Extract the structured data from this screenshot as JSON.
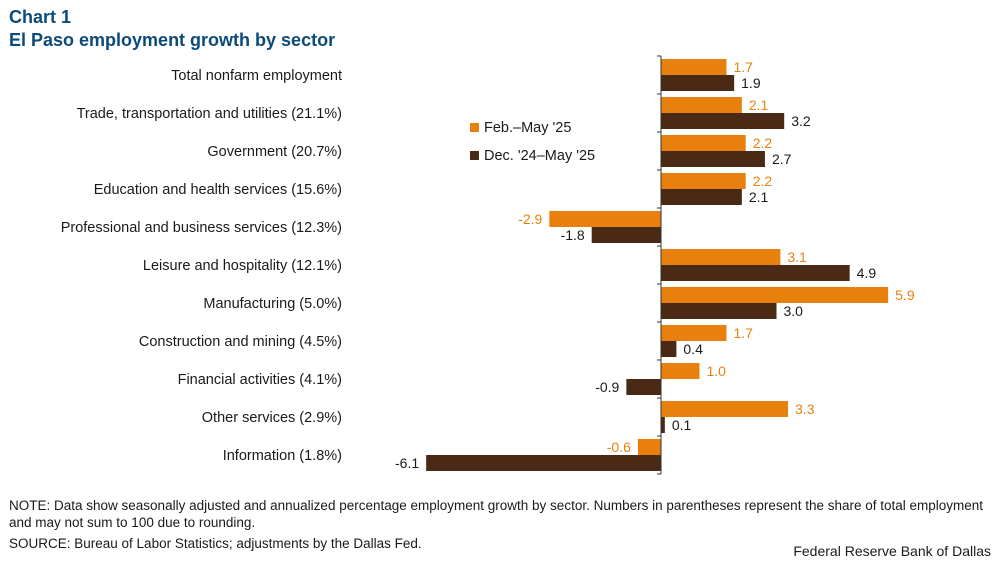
{
  "header": {
    "chart_number": "Chart 1",
    "title": "El Paso employment growth by sector"
  },
  "footer": {
    "note": "NOTE: Data show seasonally adjusted and annualized percentage employment growth by sector. Numbers in parentheses represent the share of total employment and may not sum to 100 due to rounding.",
    "source": "SOURCE: Bureau of Labor Statistics; adjustments by the Dallas Fed.",
    "credit": "Federal Reserve Bank of Dallas"
  },
  "colors": {
    "series_1": "#e8800e",
    "series_2": "#4a2a14",
    "title": "#0b4a7a",
    "axis": "#333333"
  },
  "chart_data": {
    "type": "bar",
    "orientation": "horizontal",
    "title": "El Paso employment growth by sector",
    "xlabel": "",
    "ylabel": "",
    "xlim": [
      -6.1,
      5.9
    ],
    "grid": false,
    "legend_position": "top-center",
    "categories": [
      "Total nonfarm employment",
      "Trade, transportation and utilities (21.1%)",
      "Government (20.7%)",
      "Education and health services (15.6%)",
      "Professional and business services (12.3%)",
      "Leisure and hospitality (12.1%)",
      "Manufacturing (5.0%)",
      "Construction and mining (4.5%)",
      "Financial activities (4.1%)",
      "Other services (2.9%)",
      "Information (1.8%)"
    ],
    "series": [
      {
        "name": "Feb.–May '25",
        "color": "#e8800e",
        "values": [
          1.7,
          2.1,
          2.2,
          2.2,
          -2.9,
          3.1,
          5.9,
          1.7,
          1.0,
          3.3,
          -0.6
        ],
        "labels": [
          "1.7",
          "2.1",
          "2.2",
          "2.2",
          "-2.9",
          "3.1",
          "5.9",
          "1.7",
          "1.0",
          "3.3",
          "-0.6"
        ]
      },
      {
        "name": "Dec. '24–May '25",
        "color": "#4a2a14",
        "values": [
          1.9,
          3.2,
          2.7,
          2.1,
          -1.8,
          4.9,
          3.0,
          0.4,
          -0.9,
          0.1,
          -6.1
        ],
        "labels": [
          "1.9",
          "3.2",
          "2.7",
          "2.1",
          "-1.8",
          "4.9",
          "3.0",
          "0.4",
          "-0.9",
          "0.1",
          "-6.1"
        ]
      }
    ]
  }
}
